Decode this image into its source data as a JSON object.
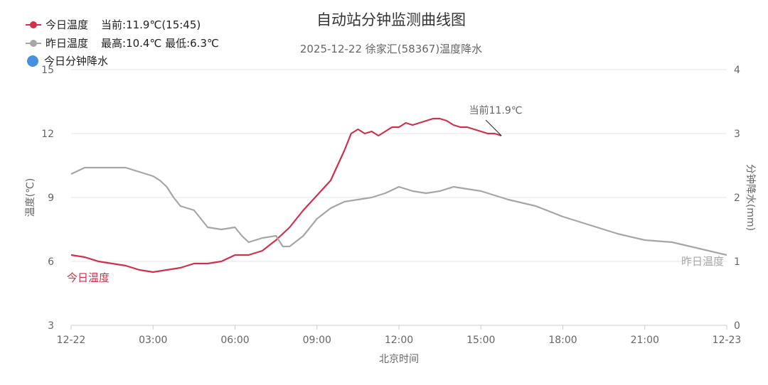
{
  "title": "自动站分钟监测曲线图",
  "subtitle": "2025-12-22 徐家汇(58367)温度降水",
  "legend": [
    {
      "name": "今日温度",
      "info": "当前:11.9℃(15:45)",
      "color": "#d0304a",
      "icon": "line-dot"
    },
    {
      "name": "昨日温度",
      "info": "最高:10.4℃ 最低:6.3℃",
      "color": "#a6a6a6",
      "icon": "line-dot"
    },
    {
      "name": "今日分钟降水",
      "info": "",
      "color": "#4a90e2",
      "icon": "dot"
    }
  ],
  "colors": {
    "today": "#d0304a",
    "yesterday": "#a6a6a6",
    "precip": "#4a90e2",
    "grid": "#e6e6e6",
    "axis": "#666666"
  },
  "chart_data": {
    "type": "line",
    "title": "自动站分钟监测曲线图",
    "subtitle": "2025-12-22 徐家汇(58367)温度降水",
    "xlabel": "北京时间",
    "ylabel": "温度(℃)",
    "y2label": "分钟降水(mm)",
    "x_unit": "hours since 2025-12-22 00:00",
    "x_tick_labels": [
      "12-22",
      "03:00",
      "06:00",
      "09:00",
      "12:00",
      "15:00",
      "18:00",
      "21:00",
      "12-23"
    ],
    "x_ticks": [
      0,
      3,
      6,
      9,
      12,
      15,
      18,
      21,
      24
    ],
    "xlim": [
      0,
      24
    ],
    "ylim": [
      3,
      15
    ],
    "y_ticks": [
      3,
      6,
      9,
      12,
      15
    ],
    "y2lim": [
      0,
      4
    ],
    "y2_ticks": [
      0,
      1,
      2,
      3,
      4
    ],
    "grid": true,
    "legend_position": "top-left",
    "series": [
      {
        "name": "今日温度",
        "label": "今日温度",
        "x": [
          0,
          0.5,
          1,
          1.5,
          2,
          2.5,
          3,
          3.5,
          4,
          4.5,
          5,
          5.5,
          6,
          6.5,
          7,
          7.5,
          8,
          8.5,
          9,
          9.5,
          10,
          10.25,
          10.5,
          10.75,
          11,
          11.25,
          11.5,
          11.75,
          12,
          12.25,
          12.5,
          12.75,
          13,
          13.25,
          13.5,
          13.75,
          14,
          14.25,
          14.5,
          14.75,
          15,
          15.25,
          15.5,
          15.75
        ],
        "y": [
          6.3,
          6.2,
          6.0,
          5.9,
          5.8,
          5.6,
          5.5,
          5.6,
          5.7,
          5.9,
          5.9,
          6.0,
          6.3,
          6.3,
          6.5,
          7.0,
          7.6,
          8.4,
          9.1,
          9.8,
          11.2,
          12.0,
          12.2,
          12.0,
          12.1,
          11.9,
          12.1,
          12.3,
          12.3,
          12.5,
          12.4,
          12.5,
          12.6,
          12.7,
          12.7,
          12.6,
          12.4,
          12.3,
          12.3,
          12.2,
          12.1,
          12.0,
          12.0,
          11.9
        ]
      },
      {
        "name": "昨日温度",
        "label": "昨日温度",
        "x": [
          0,
          0.5,
          1,
          1.5,
          2,
          2.5,
          3,
          3.25,
          3.5,
          3.75,
          4,
          4.5,
          5,
          5.5,
          6,
          6.25,
          6.5,
          7,
          7.5,
          7.75,
          8,
          8.5,
          9,
          9.5,
          10,
          10.5,
          11,
          11.5,
          12,
          12.5,
          13,
          13.5,
          14,
          14.5,
          15,
          15.5,
          16,
          17,
          18,
          19,
          20,
          21,
          22,
          23,
          24
        ],
        "y": [
          10.1,
          10.4,
          10.4,
          10.4,
          10.4,
          10.2,
          10.0,
          9.8,
          9.5,
          9.0,
          8.6,
          8.4,
          7.6,
          7.5,
          7.6,
          7.2,
          6.9,
          7.1,
          7.2,
          6.7,
          6.7,
          7.2,
          8.0,
          8.5,
          8.8,
          8.9,
          9.0,
          9.2,
          9.5,
          9.3,
          9.2,
          9.3,
          9.5,
          9.4,
          9.3,
          9.1,
          8.9,
          8.6,
          8.1,
          7.7,
          7.3,
          7.0,
          6.9,
          6.6,
          6.3
        ]
      },
      {
        "name": "今日分钟降水",
        "x": [],
        "y": []
      }
    ],
    "annotations": [
      {
        "text": "当前11.9℃",
        "x": 15.75,
        "y": 11.9
      }
    ]
  }
}
